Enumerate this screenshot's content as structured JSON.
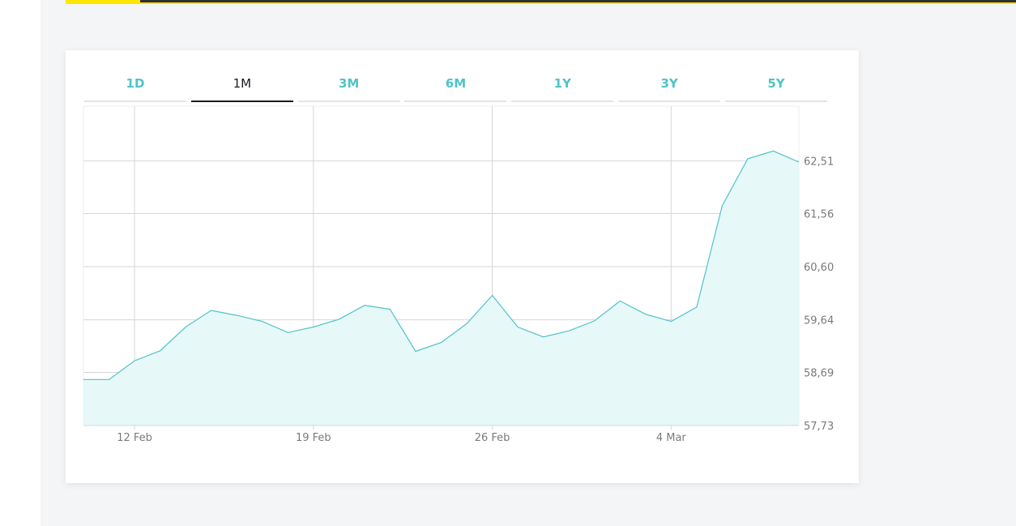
{
  "colors": {
    "accent": "#4fc3c8",
    "fill": "#e6f8f8",
    "yellow": "#ffe600",
    "dark": "#2e2e38"
  },
  "tabs": [
    {
      "label": "1D",
      "active": false
    },
    {
      "label": "1M",
      "active": true
    },
    {
      "label": "3M",
      "active": false
    },
    {
      "label": "6M",
      "active": false
    },
    {
      "label": "1Y",
      "active": false
    },
    {
      "label": "3Y",
      "active": false
    },
    {
      "label": "5Y",
      "active": false
    }
  ],
  "chart_data": {
    "type": "area",
    "title": "",
    "xlabel": "",
    "ylabel": "",
    "x_tick_labels": [
      "12 Feb",
      "19 Feb",
      "26 Feb",
      "4 Mar"
    ],
    "y_tick_labels": [
      "62,51",
      "61,56",
      "60,60",
      "59,64",
      "58,69",
      "57,73"
    ],
    "y_ticks": [
      62.51,
      61.56,
      60.6,
      59.64,
      58.69,
      57.73
    ],
    "ylim": [
      57.73,
      63.5
    ],
    "x_dates": [
      "2024-02-10",
      "2024-03-09"
    ],
    "grid": true,
    "legend": "none",
    "series": [
      {
        "x": [
          "2024-02-10",
          "2024-02-11",
          "2024-02-12",
          "2024-02-13",
          "2024-02-14",
          "2024-02-15",
          "2024-02-16",
          "2024-02-17",
          "2024-02-18",
          "2024-02-19",
          "2024-02-20",
          "2024-02-21",
          "2024-02-22",
          "2024-02-23",
          "2024-02-24",
          "2024-02-25",
          "2024-02-26",
          "2024-02-27",
          "2024-02-28",
          "2024-02-29",
          "2024-03-01",
          "2024-03-02",
          "2024-03-03",
          "2024-03-04",
          "2024-03-05",
          "2024-03-06",
          "2024-03-07",
          "2024-03-08",
          "2024-03-09"
        ],
        "values": [
          58.56,
          58.56,
          58.9,
          59.08,
          59.51,
          59.81,
          59.72,
          59.61,
          59.41,
          59.51,
          59.65,
          59.9,
          59.83,
          59.07,
          59.23,
          59.57,
          60.08,
          59.51,
          59.33,
          59.44,
          59.62,
          59.98,
          59.74,
          59.61,
          59.87,
          61.7,
          62.55,
          62.69,
          62.49
        ]
      }
    ]
  }
}
